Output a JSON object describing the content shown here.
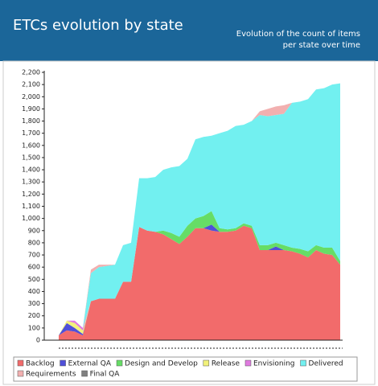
{
  "chart_data": {
    "type": "stacked_area",
    "title": "ETCs evolution by state",
    "subtitle": "Evolution of the count of items per state over time",
    "categories": [
      null,
      null,
      null,
      null,
      null,
      null,
      null,
      null,
      null,
      null,
      null,
      null,
      null,
      null,
      null,
      null,
      null,
      null,
      null,
      null,
      null,
      null,
      null,
      null,
      null,
      null,
      null,
      null,
      null,
      null,
      null,
      null,
      null,
      null,
      null,
      null
    ],
    "series": [
      {
        "name": "Backlog",
        "color": "#f26b6b",
        "values": [
          40,
          80,
          70,
          40,
          320,
          340,
          340,
          340,
          480,
          480,
          930,
          900,
          890,
          870,
          830,
          790,
          850,
          920,
          920,
          900,
          890,
          890,
          900,
          940,
          920,
          740,
          740,
          740,
          740,
          730,
          710,
          680,
          740,
          710,
          700,
          620
        ]
      },
      {
        "name": "External QA",
        "color": "#4f4fd9",
        "values": [
          0,
          60,
          30,
          10,
          0,
          0,
          0,
          0,
          0,
          0,
          0,
          0,
          0,
          0,
          0,
          0,
          0,
          0,
          0,
          50,
          0,
          0,
          0,
          0,
          0,
          0,
          0,
          30,
          0,
          0,
          0,
          0,
          0,
          0,
          0,
          0
        ]
      },
      {
        "name": "Design and Develop",
        "color": "#66dd66",
        "values": [
          0,
          0,
          0,
          0,
          0,
          0,
          0,
          0,
          0,
          0,
          0,
          0,
          0,
          30,
          50,
          60,
          90,
          80,
          100,
          110,
          30,
          20,
          20,
          20,
          20,
          40,
          40,
          30,
          40,
          30,
          40,
          50,
          40,
          50,
          60,
          30
        ]
      },
      {
        "name": "Release",
        "color": "#f2f27a",
        "values": [
          0,
          20,
          40,
          30,
          0,
          0,
          0,
          0,
          0,
          0,
          0,
          0,
          0,
          0,
          0,
          0,
          0,
          0,
          0,
          0,
          0,
          0,
          0,
          0,
          0,
          0,
          0,
          0,
          0,
          0,
          0,
          0,
          0,
          0,
          0,
          0
        ]
      },
      {
        "name": "Envisioning",
        "color": "#e07ae0",
        "values": [
          0,
          0,
          20,
          20,
          0,
          0,
          0,
          0,
          0,
          0,
          0,
          0,
          0,
          0,
          0,
          0,
          0,
          0,
          0,
          0,
          0,
          0,
          0,
          0,
          0,
          0,
          0,
          0,
          0,
          0,
          0,
          0,
          0,
          0,
          0,
          0
        ]
      },
      {
        "name": "Delivered",
        "color": "#72f0f0",
        "values": [
          0,
          0,
          0,
          0,
          230,
          260,
          270,
          280,
          300,
          320,
          400,
          430,
          450,
          500,
          540,
          580,
          550,
          650,
          650,
          620,
          780,
          810,
          840,
          810,
          860,
          1070,
          1060,
          1050,
          1080,
          1190,
          1210,
          1250,
          1280,
          1310,
          1340,
          1460
        ]
      },
      {
        "name": "Requirements",
        "color": "#f2b0b0",
        "values": [
          0,
          0,
          0,
          0,
          30,
          20,
          10,
          0,
          0,
          0,
          0,
          0,
          0,
          0,
          0,
          0,
          0,
          0,
          0,
          0,
          0,
          0,
          0,
          0,
          0,
          30,
          60,
          70,
          70,
          0,
          0,
          0,
          0,
          0,
          0,
          0
        ]
      },
      {
        "name": "Final QA",
        "color": "#808080",
        "values": [
          0,
          0,
          0,
          0,
          0,
          0,
          0,
          0,
          0,
          0,
          0,
          0,
          0,
          0,
          0,
          0,
          0,
          0,
          0,
          0,
          0,
          0,
          0,
          0,
          0,
          0,
          0,
          0,
          0,
          0,
          0,
          0,
          0,
          0,
          0,
          0
        ]
      }
    ],
    "ylim": [
      0,
      2200
    ],
    "yticks": [
      0,
      100,
      200,
      300,
      400,
      500,
      600,
      700,
      800,
      900,
      {
        "value": 1000,
        "label": "1,000"
      },
      {
        "value": 1100,
        "label": "1,100"
      },
      {
        "value": 1200,
        "label": "1,200"
      },
      {
        "value": 1300,
        "label": "1,300"
      },
      {
        "value": 1400,
        "label": "1,400"
      },
      {
        "value": 1500,
        "label": "1,500"
      },
      {
        "value": 1600,
        "label": "1,600"
      },
      {
        "value": 1700,
        "label": "1,700"
      },
      {
        "value": 1800,
        "label": "1,800"
      },
      {
        "value": 1900,
        "label": "1,900"
      },
      {
        "value": 2000,
        "label": "2,000"
      },
      {
        "value": 2100,
        "label": "2,100"
      },
      {
        "value": 2200,
        "label": "2,200"
      }
    ],
    "grid": false,
    "legend": "bottom"
  }
}
